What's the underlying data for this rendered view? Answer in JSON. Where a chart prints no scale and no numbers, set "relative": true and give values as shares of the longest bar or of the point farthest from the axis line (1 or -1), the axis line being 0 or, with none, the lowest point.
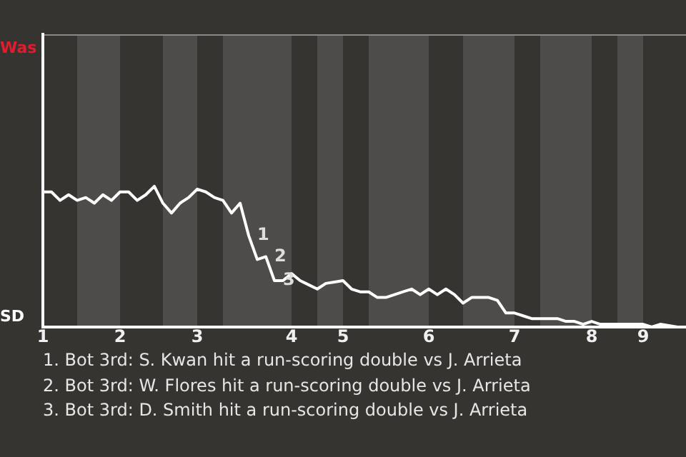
{
  "chart_data": {
    "type": "line",
    "categories": [
      "1",
      null,
      null,
      null,
      null,
      null,
      null,
      null,
      null,
      "2",
      null,
      null,
      null,
      null,
      null,
      null,
      null,
      null,
      "3",
      null,
      null,
      null,
      null,
      null,
      null,
      null,
      null,
      null,
      null,
      "4",
      null,
      null,
      null,
      null,
      null,
      "5",
      null,
      null,
      null,
      null,
      null,
      null,
      null,
      null,
      null,
      "6",
      null,
      null,
      null,
      null,
      null,
      null,
      null,
      null,
      null,
      "7",
      null,
      null,
      null,
      null,
      null,
      null,
      null,
      null,
      "8",
      null,
      null,
      null,
      null,
      null,
      "9",
      null,
      null,
      null,
      null,
      null
    ],
    "relative": true,
    "series": [
      {
        "values": [
          0.96,
          0.96,
          0.9,
          0.94,
          0.9,
          0.92,
          0.88,
          0.94,
          0.9,
          0.96,
          0.96,
          0.9,
          0.94,
          1,
          0.88,
          0.81,
          0.88,
          0.92,
          0.98,
          0.96,
          0.92,
          0.9,
          0.81,
          0.88,
          0.65,
          0.48,
          0.5,
          0.33,
          0.33,
          0.38,
          0.33,
          0.3,
          0.27,
          0.31,
          0.32,
          0.33,
          0.27,
          0.25,
          0.25,
          0.21,
          0.21,
          0.23,
          0.25,
          0.27,
          0.23,
          0.27,
          0.23,
          0.27,
          0.23,
          0.17,
          0.21,
          0.21,
          0.21,
          0.19,
          0.1,
          0.1,
          0.08,
          0.06,
          0.06,
          0.06,
          0.06,
          0.04,
          0.04,
          0.02,
          0.04,
          0.02,
          0.02,
          0.02,
          0.02,
          0.02,
          0.02,
          0,
          0.02,
          0.01,
          0,
          0
        ],
        "color": "#ffffff"
      }
    ],
    "marker": "none",
    "annotations": [
      "1",
      "2",
      "3",
      "Was",
      "SD",
      "1. Bot 3rd: S. Kwan hit a run-scoring double vs J. Arrieta",
      "2. Bot 3rd: W. Flores hit a run-scoring double vs J. Arrieta",
      "3. Bot 3rd: D. Smith hit a run-scoring double vs J. Arrieta"
    ]
  }
}
